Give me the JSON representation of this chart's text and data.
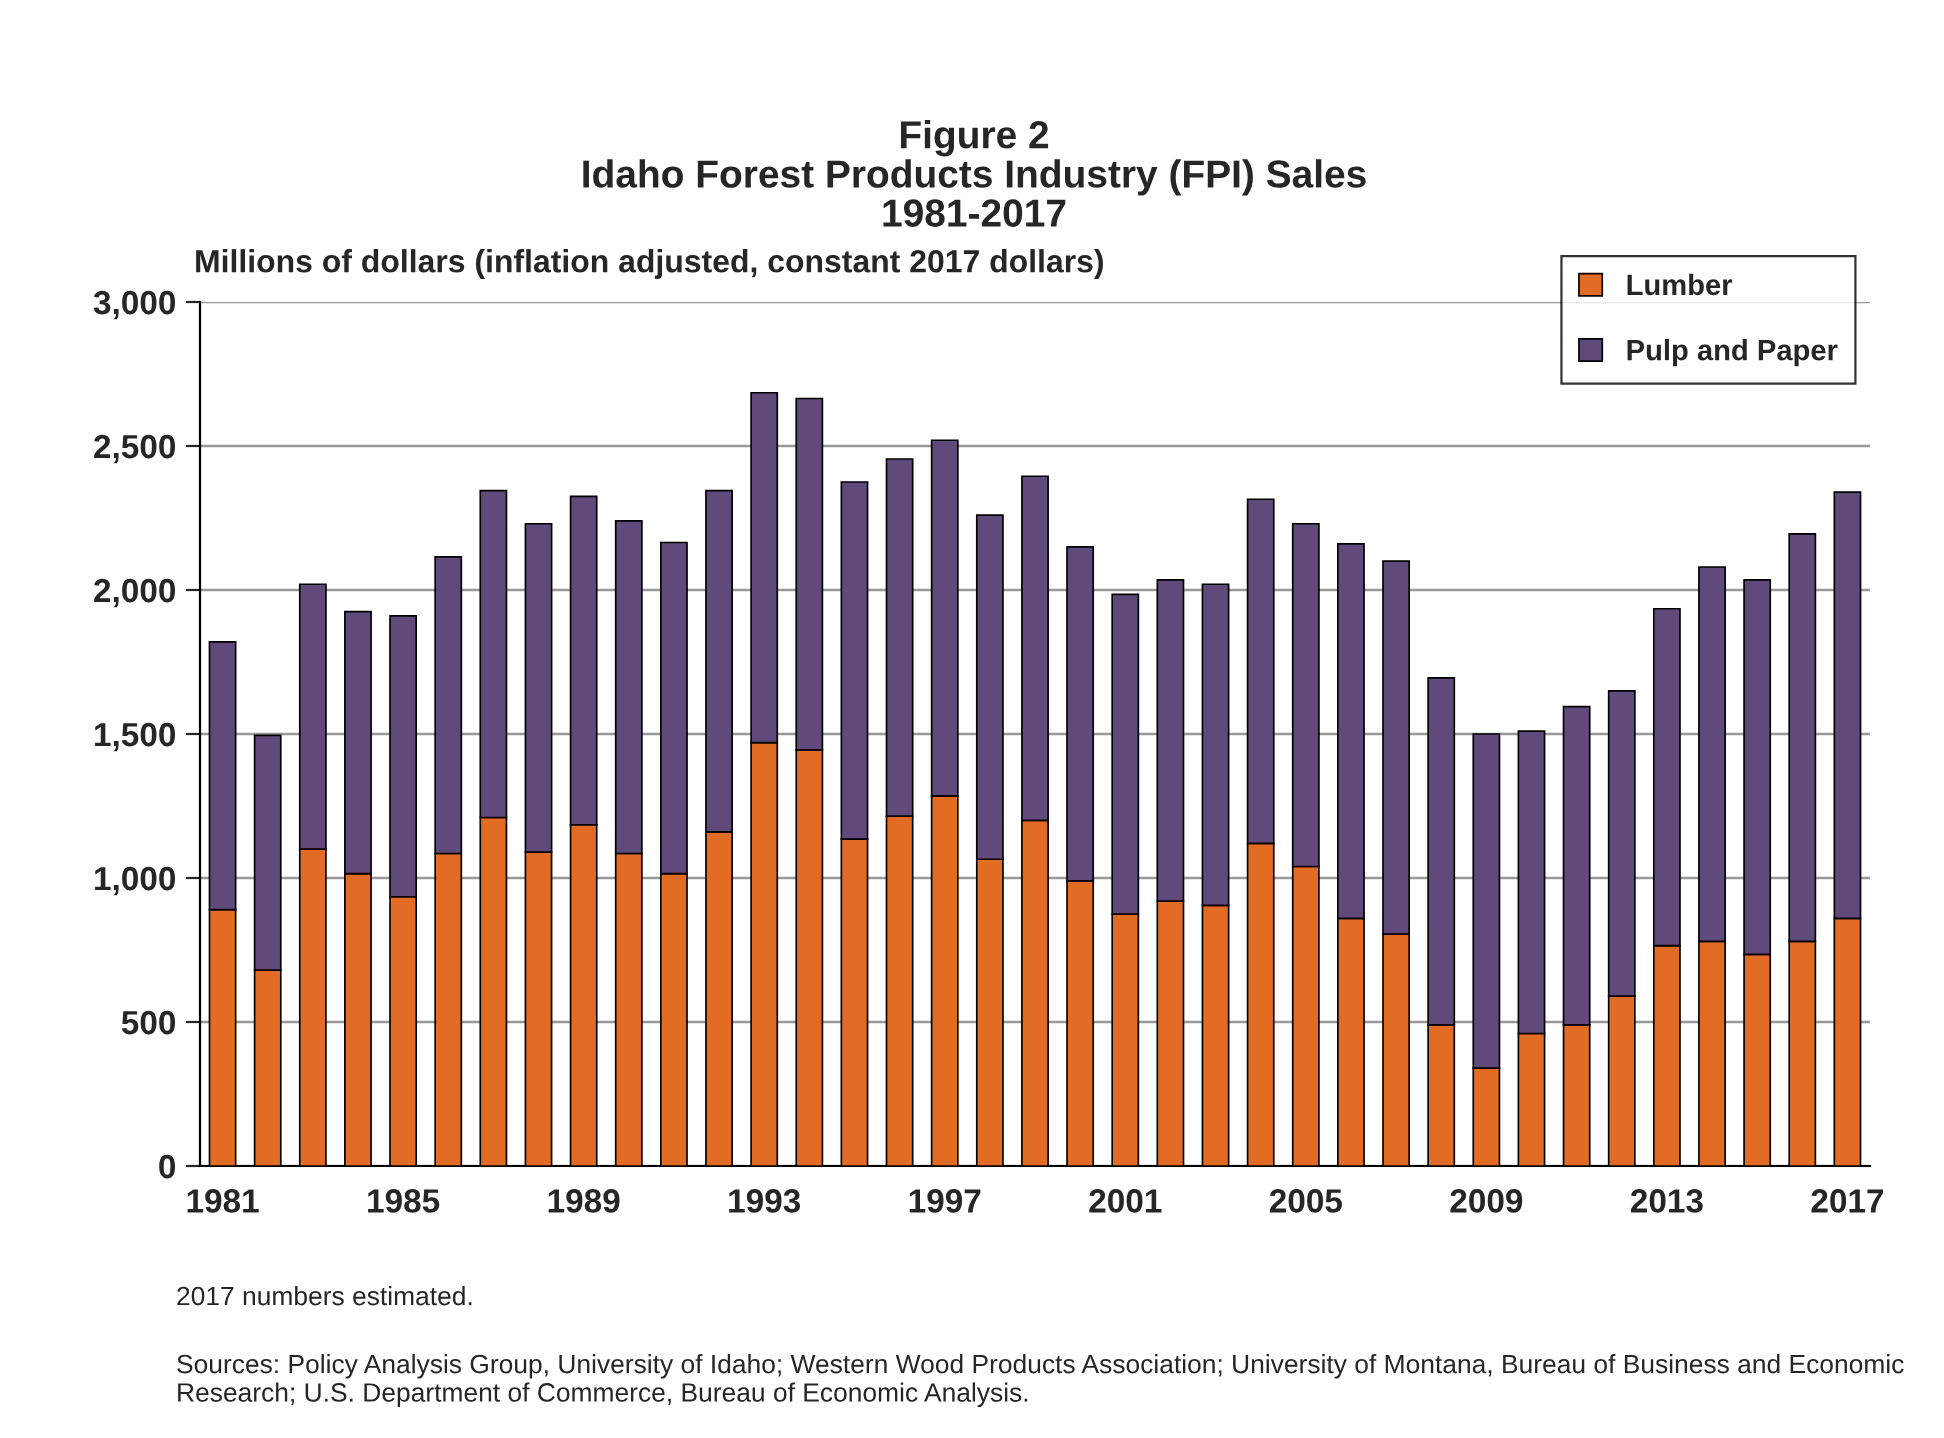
{
  "chart_data": {
    "type": "bar",
    "stacked": true,
    "title": "Figure 2\nIdaho Forest Products Industry (FPI) Sales\n1981-2017",
    "ylabel": "Millions of dollars (inflation adjusted, constant 2017 dollars)",
    "categories": [
      "1981",
      null,
      null,
      null,
      "1985",
      null,
      null,
      null,
      "1989",
      null,
      null,
      null,
      "1993",
      null,
      null,
      null,
      "1997",
      null,
      null,
      null,
      "2001",
      null,
      null,
      null,
      "2005",
      null,
      null,
      null,
      "2009",
      null,
      null,
      null,
      "2013",
      null,
      null,
      null,
      "2017"
    ],
    "series": [
      {
        "name": "Lumber",
        "color": "#e36c24",
        "values": [
          890,
          680,
          1100,
          1015,
          935,
          1085,
          1210,
          1090,
          1185,
          1085,
          1015,
          1160,
          1470,
          1445,
          1135,
          1215,
          1285,
          1065,
          1200,
          990,
          875,
          920,
          905,
          1120,
          1040,
          860,
          805,
          490,
          340,
          460,
          490,
          590,
          765,
          780,
          735,
          780,
          860
        ]
      },
      {
        "name": "Pulp and Paper",
        "color": "#604a7b",
        "values": [
          930,
          815,
          920,
          910,
          975,
          1030,
          1135,
          1140,
          1140,
          1155,
          1150,
          1185,
          1215,
          1220,
          1240,
          1240,
          1235,
          1195,
          1195,
          1160,
          1110,
          1115,
          1115,
          1195,
          1190,
          1300,
          1295,
          1205,
          1160,
          1050,
          1105,
          1060,
          1170,
          1300,
          1300,
          1415,
          1480
        ]
      }
    ],
    "ylim": [
      0,
      3000
    ],
    "yticks": [
      {
        "value": 0,
        "label": "0"
      },
      {
        "value": 500,
        "label": "500"
      },
      {
        "value": 1000,
        "label": "1,000"
      },
      {
        "value": 1500,
        "label": "1,500"
      },
      {
        "value": 2000,
        "label": "2,000"
      },
      {
        "value": 2500,
        "label": "2,500"
      },
      {
        "value": 3000,
        "label": "3,000"
      }
    ],
    "grid": "y",
    "legend": "top right",
    "annotations": [
      "2017 numbers estimated.",
      "Sources: Policy Analysis Group, University of Idaho; Western Wood Products Association; University of Montana, Bureau of Business and Economic Research; U.S. Department of Commerce, Bureau of Economic Analysis."
    ]
  }
}
